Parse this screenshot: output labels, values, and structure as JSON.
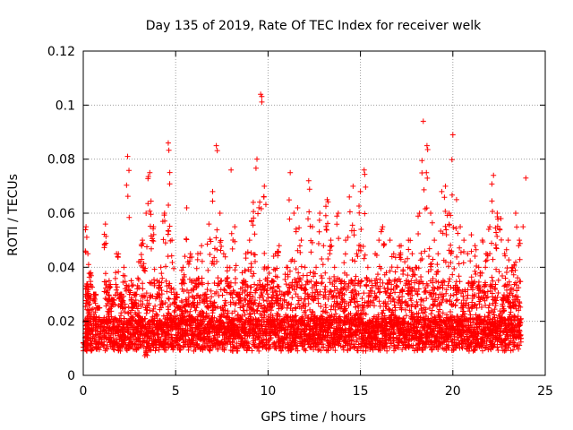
{
  "chart_data": {
    "type": "scatter",
    "title": "Day 135 of 2019, Rate Of TEC Index for receiver welk",
    "xlabel": "GPS time / hours",
    "ylabel": "ROTI / TECUs",
    "xlim": [
      0,
      25
    ],
    "ylim": [
      0,
      0.12
    ],
    "x_ticks": [
      0,
      5,
      10,
      15,
      20,
      25
    ],
    "x_tick_labels": [
      "0",
      "5",
      "10",
      "15",
      "20",
      "25"
    ],
    "y_ticks": [
      0,
      0.02,
      0.04,
      0.06,
      0.08,
      0.1,
      0.12
    ],
    "y_tick_labels": [
      "0",
      "0.02",
      "0.04",
      "0.06",
      "0.08",
      "0.1",
      "0.12"
    ],
    "grid": true,
    "marker": "+",
    "color": "#ff0000",
    "series": [
      {
        "name": "ROTI",
        "x": [
          0.0,
          0.1,
          0.2,
          0.3,
          0.5,
          0.7,
          0.9,
          1.1,
          1.3,
          1.5,
          1.7,
          1.9,
          2.1,
          2.3,
          2.5,
          2.7,
          2.9,
          3.1,
          3.3,
          3.5,
          3.7,
          3.9,
          4.1,
          4.3,
          4.5,
          4.7,
          4.9,
          5.1,
          5.3,
          5.5,
          5.7,
          5.9,
          6.1,
          6.3,
          6.5,
          6.7,
          6.9,
          7.1,
          7.3,
          7.5,
          7.7,
          7.9,
          8.1,
          8.3,
          8.5,
          8.7,
          8.9,
          9.1,
          9.3,
          9.5,
          9.7,
          9.9,
          10.1,
          10.3,
          10.5,
          10.7,
          10.9,
          11.1,
          11.3,
          11.5,
          11.7,
          11.9,
          12.1,
          12.3,
          12.5,
          12.7,
          12.9,
          13.1,
          13.3,
          13.5,
          13.7,
          13.9,
          14.1,
          14.3,
          14.5,
          14.7,
          14.9,
          15.1,
          15.3,
          15.5,
          15.7,
          15.9,
          16.1,
          16.3,
          16.5,
          16.7,
          16.9,
          17.1,
          17.3,
          17.5,
          17.7,
          17.9,
          18.1,
          18.3,
          18.5,
          18.7,
          18.9,
          19.1,
          19.3,
          19.5,
          19.7,
          19.9,
          20.1,
          20.3,
          20.5,
          20.7,
          20.9,
          21.1,
          21.3,
          21.5,
          21.7,
          21.9,
          22.1,
          22.3,
          22.5,
          22.7,
          22.9,
          23.1,
          23.3,
          23.5,
          23.7,
          23.9
        ],
        "y": [
          0.012,
          0.055,
          0.045,
          0.038,
          0.03,
          0.025,
          0.02,
          0.056,
          0.035,
          0.028,
          0.045,
          0.03,
          0.04,
          0.081,
          0.035,
          0.03,
          0.042,
          0.05,
          0.06,
          0.075,
          0.055,
          0.035,
          0.04,
          0.06,
          0.086,
          0.05,
          0.03,
          0.025,
          0.04,
          0.062,
          0.045,
          0.035,
          0.045,
          0.048,
          0.03,
          0.056,
          0.068,
          0.085,
          0.06,
          0.045,
          0.04,
          0.076,
          0.055,
          0.03,
          0.038,
          0.045,
          0.05,
          0.064,
          0.08,
          0.104,
          0.07,
          0.04,
          0.035,
          0.045,
          0.048,
          0.03,
          0.04,
          0.075,
          0.06,
          0.062,
          0.05,
          0.04,
          0.072,
          0.055,
          0.04,
          0.06,
          0.048,
          0.065,
          0.05,
          0.04,
          0.06,
          0.035,
          0.05,
          0.066,
          0.07,
          0.045,
          0.068,
          0.076,
          0.04,
          0.035,
          0.045,
          0.05,
          0.055,
          0.038,
          0.05,
          0.045,
          0.04,
          0.048,
          0.042,
          0.05,
          0.045,
          0.04,
          0.06,
          0.094,
          0.085,
          0.06,
          0.05,
          0.045,
          0.068,
          0.07,
          0.06,
          0.089,
          0.065,
          0.055,
          0.05,
          0.045,
          0.052,
          0.048,
          0.04,
          0.05,
          0.045,
          0.055,
          0.074,
          0.06,
          0.058,
          0.045,
          0.05,
          0.04,
          0.06,
          0.05,
          0.055,
          0.073
        ],
        "baseline_min": [
          0.005,
          0.005,
          0.006,
          0.005,
          0.006,
          0.005,
          0.006,
          0.005,
          0.006,
          0.005,
          0.006,
          0.005,
          0.006,
          0.005,
          0.006,
          0.005,
          0.006,
          0.005,
          0.003,
          0.005,
          0.006,
          0.005,
          0.006,
          0.005,
          0.006,
          0.005,
          0.006,
          0.005,
          0.006,
          0.005,
          0.006,
          0.005,
          0.006,
          0.005,
          0.006,
          0.005,
          0.006,
          0.005,
          0.006,
          0.005,
          0.006,
          0.005,
          0.006,
          0.005,
          0.006,
          0.005,
          0.006,
          0.005,
          0.006,
          0.005,
          0.006,
          0.005,
          0.006,
          0.005,
          0.006,
          0.005,
          0.006,
          0.005,
          0.006,
          0.005,
          0.006,
          0.005,
          0.006,
          0.005,
          0.006,
          0.005,
          0.006,
          0.005,
          0.006,
          0.005,
          0.006,
          0.005,
          0.006,
          0.005,
          0.006,
          0.005,
          0.006,
          0.004,
          0.006,
          0.005,
          0.006,
          0.005,
          0.006,
          0.005,
          0.006,
          0.005,
          0.006,
          0.005,
          0.006,
          0.005,
          0.006,
          0.005,
          0.006,
          0.005,
          0.006,
          0.005,
          0.006,
          0.005,
          0.006,
          0.005,
          0.006,
          0.005,
          0.006,
          0.005,
          0.006,
          0.005,
          0.006,
          0.005,
          0.006,
          0.005,
          0.006,
          0.005,
          0.006,
          0.005,
          0.006,
          0.005,
          0.006,
          0.005,
          0.006,
          0.005
        ]
      }
    ]
  }
}
